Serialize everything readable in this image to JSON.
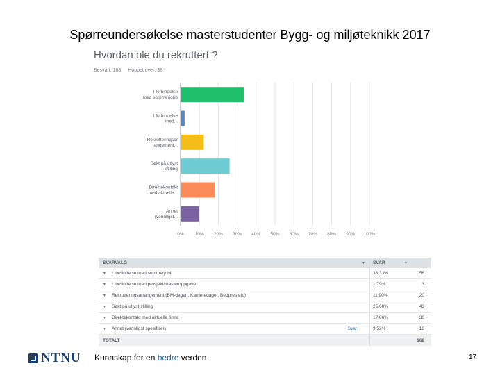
{
  "slide": {
    "title": "Spørreundersøkelse masterstudenter Bygg- og miljøteknikk 2017",
    "page_number": "17",
    "footer_pre": "Kunnskap for en ",
    "footer_highlight": "bedre",
    "footer_post": " verden",
    "logo_text": "NTNU"
  },
  "survey": {
    "question": "Hvordan ble du rekruttert ?",
    "answered": "Besvart: 168",
    "skipped": "Hoppet over: 38"
  },
  "chart_data": {
    "type": "bar",
    "orientation": "horizontal",
    "categories": [
      [
        "I forbindelse",
        "med sommerjobb"
      ],
      [
        "I forbindelse",
        "med..."
      ],
      [
        "Rekrutteringsar",
        "rangement..."
      ],
      [
        "Søkt på utlyst",
        "stilling"
      ],
      [
        "Direktekontakt",
        "med aktuelle..."
      ],
      [
        "Annet",
        "(vennligst..."
      ]
    ],
    "values": [
      33.33,
      1.79,
      11.9,
      25.6,
      17.86,
      9.52
    ],
    "colors": [
      "#1fbf6b",
      "#5a86c4",
      "#f5bd17",
      "#6ccbd3",
      "#fb8c5a",
      "#7b63a3"
    ],
    "xlim": [
      0,
      100
    ],
    "xticks": [
      "0%",
      "10%",
      "20%",
      "30%",
      "40%",
      "50%",
      "60%",
      "70%",
      "80%",
      "90%",
      "100%"
    ],
    "grid": true
  },
  "table": {
    "header_choice": "SVARVALG",
    "header_answers": "SVAR",
    "rows": [
      {
        "label": "I forbindelse med sommerjobb",
        "pct": "33,33%",
        "count": "56",
        "link": ""
      },
      {
        "label": "I forbindelse med prosjekt/masteroppgave",
        "pct": "1,79%",
        "count": "3",
        "link": ""
      },
      {
        "label": "Rekrutteringsarrangement (BM-dagen, Karrieredager, Bedpres etc)",
        "pct": "11,90%",
        "count": "20",
        "link": ""
      },
      {
        "label": "Søkt på utlyst stilling",
        "pct": "25,60%",
        "count": "43",
        "link": ""
      },
      {
        "label": "Direktekontakt med aktuelle firma",
        "pct": "17,86%",
        "count": "30",
        "link": ""
      },
      {
        "label": "Annet (vennligst spesifiser)",
        "pct": "9,52%",
        "count": "16",
        "link": "Svar"
      }
    ],
    "total_label": "TOTALT",
    "total_count": "168"
  }
}
